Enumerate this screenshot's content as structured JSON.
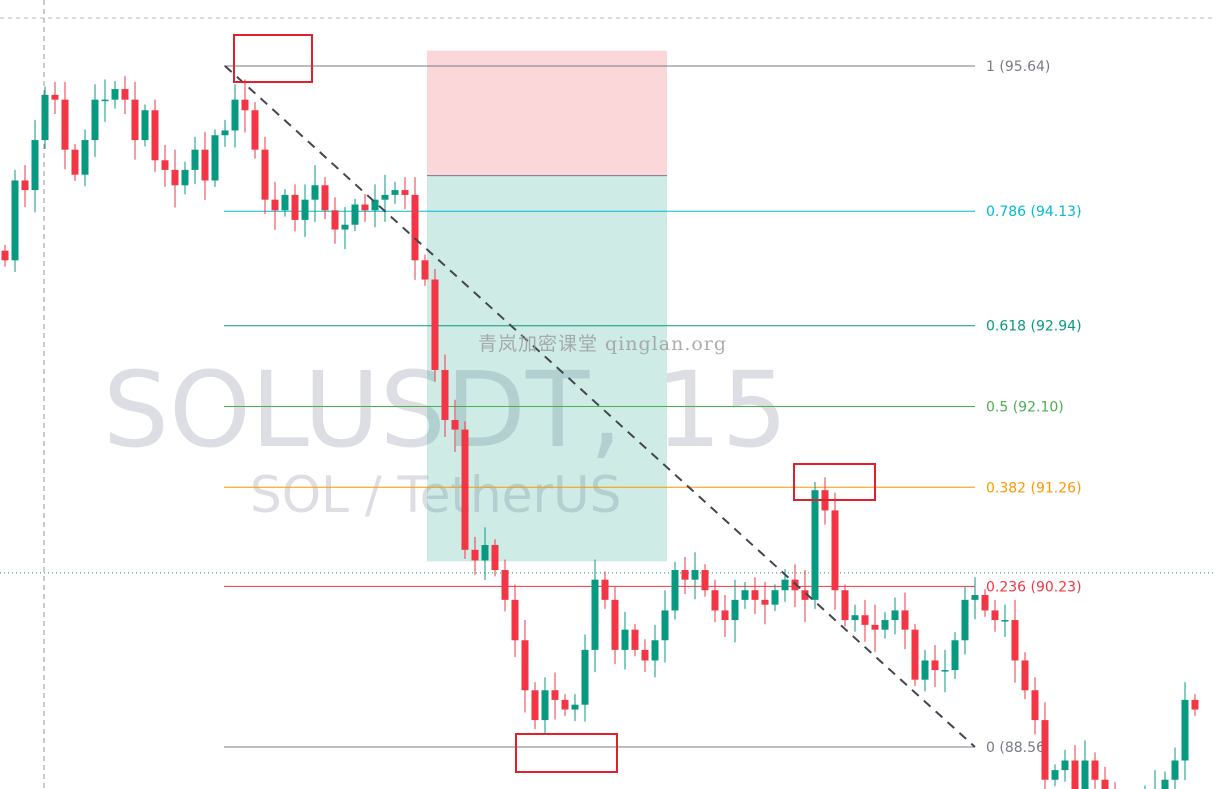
{
  "watermark": {
    "symbol": "SOLUSDT, 15",
    "pair": "SOL / TetherUS",
    "brand": "青岚加密课堂 qinglan.org"
  },
  "colors": {
    "up": "#089981",
    "down": "#f23645",
    "risk": "#f23645",
    "reward": "#089981",
    "annotation": "#e0202a"
  },
  "chart_data": {
    "type": "candlestick",
    "ylim": [
      88.12,
      95.64
    ],
    "timeframe": "15",
    "closes": [
      93.62,
      94.45,
      94.35,
      94.87,
      95.34,
      95.29,
      94.77,
      94.51,
      94.87,
      95.29,
      95.29,
      95.4,
      95.29,
      94.87,
      95.18,
      94.66,
      94.56,
      94.4,
      94.56,
      94.77,
      94.45,
      94.92,
      94.97,
      95.29,
      95.18,
      94.77,
      94.25,
      94.14,
      94.3,
      94.04,
      94.25,
      94.4,
      94.14,
      93.94,
      93.99,
      94.2,
      94.14,
      94.25,
      94.3,
      94.35,
      94.3,
      93.62,
      93.42,
      92.48,
      91.96,
      91.86,
      90.61,
      90.5,
      90.66,
      90.4,
      90.09,
      89.67,
      89.15,
      88.84,
      89.15,
      89.05,
      88.95,
      89.0,
      89.57,
      90.3,
      90.09,
      89.57,
      89.78,
      89.57,
      89.46,
      89.67,
      89.98,
      90.4,
      90.3,
      90.4,
      90.19,
      89.98,
      89.88,
      90.09,
      90.19,
      90.09,
      90.04,
      90.19,
      90.3,
      90.19,
      90.09,
      91.23,
      91.02,
      90.19,
      89.88,
      89.93,
      89.83,
      89.78,
      89.88,
      89.98,
      89.78,
      89.26,
      89.46,
      89.36,
      89.36,
      89.67,
      90.09,
      90.14,
      89.98,
      89.88,
      89.88,
      89.46,
      89.15,
      88.84,
      88.22,
      88.32,
      88.42,
      88.11,
      88.42,
      88.22,
      88.01,
      87.95,
      87.9,
      87.95,
      88.0,
      88.11,
      88.22,
      88.42,
      89.05,
      88.95
    ],
    "current_price": 90.37,
    "fib_levels": [
      {
        "ratio": "1",
        "price": 95.64,
        "label": "1 (95.64)",
        "color": "#787b86"
      },
      {
        "ratio": "0.786",
        "price": 94.13,
        "label": "0.786 (94.13)",
        "color": "#00bcd4"
      },
      {
        "ratio": "0.618",
        "price": 92.94,
        "label": "0.618 (92.94)",
        "color": "#089981"
      },
      {
        "ratio": "0.5",
        "price": 92.1,
        "label": "0.5 (92.10)",
        "color": "#4caf50"
      },
      {
        "ratio": "0.382",
        "price": 91.26,
        "label": "0.382 (91.26)",
        "color": "#ff9800"
      },
      {
        "ratio": "0.236",
        "price": 90.23,
        "label": "0.236 (90.23)",
        "color": "#f23645"
      },
      {
        "ratio": "0",
        "price": 88.56,
        "label": "0 (88.56",
        "color": "#787b86"
      }
    ],
    "position": {
      "type": "short",
      "stop": 95.8,
      "entry": 94.5,
      "target": 90.49
    },
    "trendline": {
      "from_price": 95.64,
      "to_price": 88.56,
      "style": "dashed"
    }
  }
}
